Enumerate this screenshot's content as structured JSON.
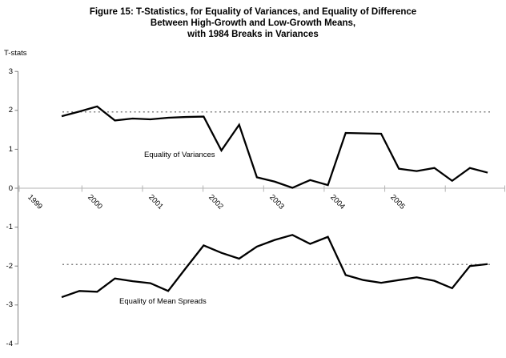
{
  "figure": {
    "title_line1": "Figure 15: T-Statistics, for Equality of Variances, and Equality of Difference",
    "title_line2": "Between High-Growth and Low-Growth Means,",
    "title_line3": "with 1984 Breaks in Variances"
  },
  "y_axis": {
    "label": "T-stats",
    "tick_labels": [
      "3",
      "2",
      "1",
      "0",
      "-1",
      "-2",
      "-3",
      "-4"
    ],
    "tick_values": [
      3,
      2,
      1,
      0,
      -1,
      -2,
      -3,
      -4
    ]
  },
  "x_axis": {
    "tick_labels": [
      "1999",
      "2000",
      "2001",
      "2002",
      "2003",
      "2004",
      "2005"
    ]
  },
  "annotations": {
    "variances_label": "Equality of Variances",
    "mean_spreads_label": "Equality of Mean Spreads"
  },
  "colors": {
    "series_line": "#000000",
    "reference_dotted": "#7f7f7f",
    "value_axis": "#808080",
    "category_axis": "#b3b3b3"
  },
  "chart_data": {
    "type": "line",
    "title": "Figure 15: T-Statistics, for Equality of Variances, and Equality of Difference Between High-Growth and Low-Growth Means, with 1984 Breaks in Variances",
    "xlabel": "",
    "ylabel": "T-stats",
    "ylim": [
      -4,
      3
    ],
    "grid": false,
    "legend_position": "inline-annotations",
    "x_tick_labels": [
      "1999",
      "2000",
      "2001",
      "2002",
      "2003",
      "2004",
      "2005"
    ],
    "reference_lines": [
      1.96,
      -1.96
    ],
    "series": [
      {
        "name": "Equality of Variances",
        "values": [
          1.85,
          1.97,
          2.1,
          1.74,
          1.79,
          1.77,
          1.81,
          1.83,
          1.84,
          0.97,
          1.63,
          0.28,
          0.17,
          0.01,
          0.21,
          0.08,
          1.42,
          1.41,
          1.4,
          0.5,
          0.44,
          0.52,
          0.19,
          0.52,
          0.4
        ]
      },
      {
        "name": "Equality of Mean Spreads",
        "values": [
          -2.8,
          -2.64,
          -2.66,
          -2.32,
          -2.39,
          -2.44,
          -2.64,
          -2.05,
          -1.47,
          -1.66,
          -1.81,
          -1.5,
          -1.33,
          -1.2,
          -1.43,
          -1.25,
          -2.23,
          -2.36,
          -2.43,
          -2.36,
          -2.29,
          -2.38,
          -2.57,
          -2.0,
          -1.95
        ]
      }
    ]
  }
}
